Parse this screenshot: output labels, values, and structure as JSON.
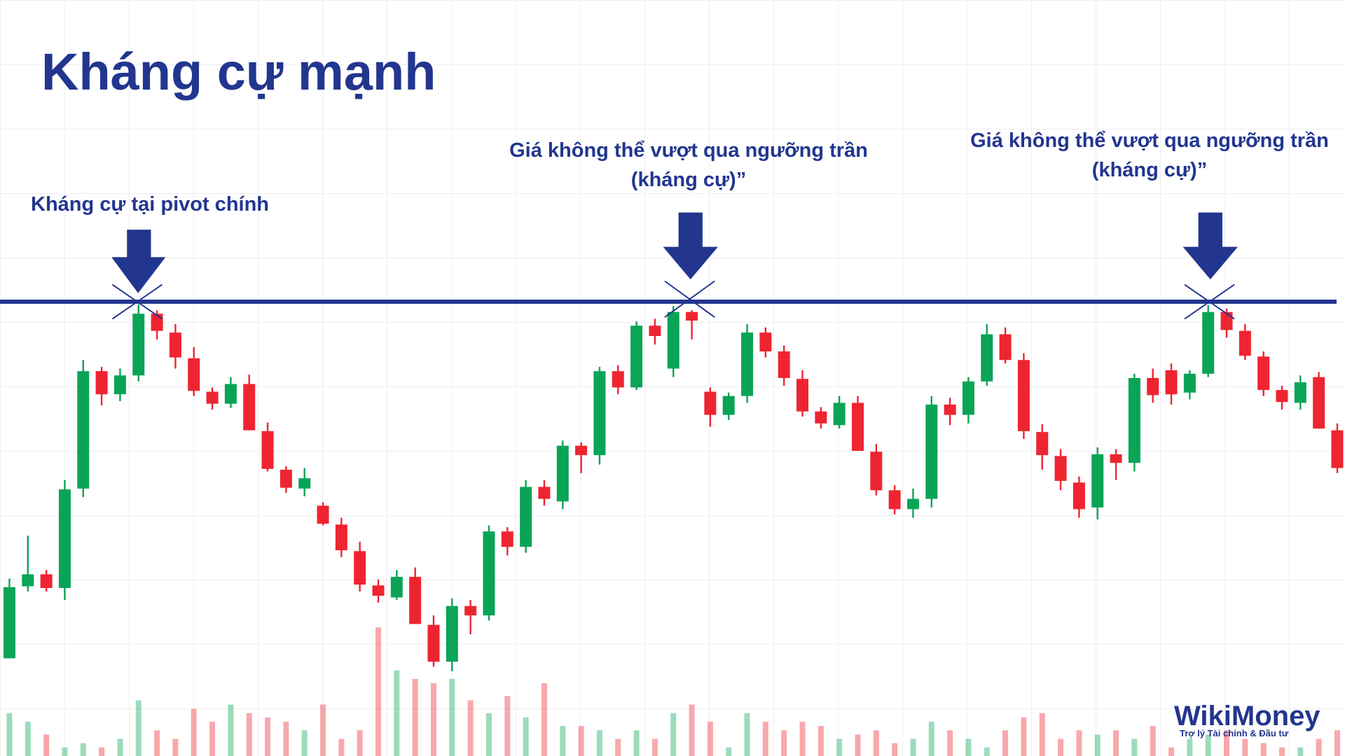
{
  "chart_data": {
    "type": "candlestick",
    "title": "Kháng cự mạnh",
    "annotations": [
      "Kháng cự tại pivot chính",
      "Giá không thể vượt qua ngưỡng trần",
      "(kháng cự)”",
      "Giá không thể vượt qua ngưỡng trần",
      "(kháng cự)”"
    ],
    "logo": {
      "name": "WikiMoney",
      "tagline": "Trợ lý Tài chính & Đầu tư"
    },
    "ylim": [
      0,
      882
    ],
    "resistance": 530,
    "up_color": "#0aa457",
    "down_color": "#ee2530",
    "line_color": "#22368f",
    "open": [
      114,
      198,
      212,
      196,
      312,
      449,
      422,
      444,
      516,
      494,
      464,
      425,
      411,
      434,
      379,
      334,
      312,
      292,
      270,
      239,
      199,
      185,
      209,
      153,
      110,
      175,
      164,
      262,
      244,
      314,
      297,
      362,
      351,
      449,
      430,
      502,
      452,
      518,
      425,
      398,
      420,
      494,
      472,
      440,
      402,
      386,
      412,
      355,
      310,
      288,
      300,
      410,
      398,
      437,
      492,
      462,
      378,
      350,
      319,
      290,
      352,
      342,
      441,
      450,
      424,
      446,
      518,
      496,
      466,
      427,
      412,
      442,
      380
    ],
    "high": [
      207,
      257,
      217,
      322,
      462,
      454,
      452,
      527,
      520,
      504,
      477,
      430,
      442,
      445,
      389,
      338,
      336,
      296,
      278,
      250,
      206,
      217,
      220,
      164,
      184,
      182,
      269,
      267,
      322,
      322,
      368,
      366,
      454,
      456,
      507,
      510,
      525,
      520,
      430,
      424,
      504,
      500,
      479,
      450,
      407,
      420,
      420,
      364,
      316,
      312,
      420,
      418,
      442,
      504,
      500,
      470,
      387,
      358,
      326,
      360,
      358,
      446,
      452,
      458,
      450,
      526,
      522,
      504,
      472,
      432,
      444,
      448,
      388
    ],
    "low": [
      114,
      192,
      192,
      182,
      302,
      409,
      414,
      437,
      486,
      452,
      420,
      404,
      406,
      380,
      332,
      307,
      303,
      269,
      232,
      192,
      179,
      182,
      154,
      104,
      99,
      142,
      158,
      234,
      237,
      292,
      288,
      330,
      340,
      422,
      427,
      480,
      442,
      486,
      384,
      392,
      412,
      465,
      432,
      396,
      382,
      382,
      356,
      304,
      282,
      278,
      290,
      386,
      388,
      432,
      458,
      370,
      334,
      310,
      278,
      276,
      322,
      332,
      412,
      410,
      416,
      442,
      488,
      462,
      420,
      404,
      404,
      382,
      330
    ],
    "close": [
      197,
      212,
      196,
      311,
      449,
      422,
      444,
      516,
      496,
      465,
      426,
      411,
      434,
      380,
      335,
      313,
      324,
      271,
      240,
      200,
      187,
      209,
      154,
      110,
      175,
      164,
      262,
      244,
      314,
      300,
      362,
      351,
      449,
      430,
      502,
      490,
      518,
      508,
      398,
      420,
      494,
      472,
      441,
      402,
      388,
      412,
      356,
      310,
      288,
      300,
      410,
      398,
      437,
      492,
      462,
      379,
      351,
      321,
      288,
      352,
      342,
      441,
      421,
      422,
      446,
      518,
      497,
      467,
      427,
      413,
      436,
      382,
      336
    ],
    "volume": [
      50,
      40,
      25,
      10,
      15,
      10,
      20,
      65,
      30,
      20,
      55,
      40,
      60,
      50,
      45,
      40,
      30,
      60,
      20,
      30,
      150,
      100,
      90,
      85,
      90,
      65,
      50,
      70,
      45,
      85,
      35,
      35,
      30,
      20,
      30,
      20,
      50,
      60,
      40,
      10,
      50,
      40,
      30,
      40,
      35,
      20,
      25,
      30,
      15,
      20,
      40,
      30,
      20,
      10,
      30,
      45,
      50,
      20,
      30,
      25,
      30,
      20,
      35,
      10,
      20,
      25,
      30,
      20,
      15,
      10,
      10,
      20,
      30
    ]
  }
}
